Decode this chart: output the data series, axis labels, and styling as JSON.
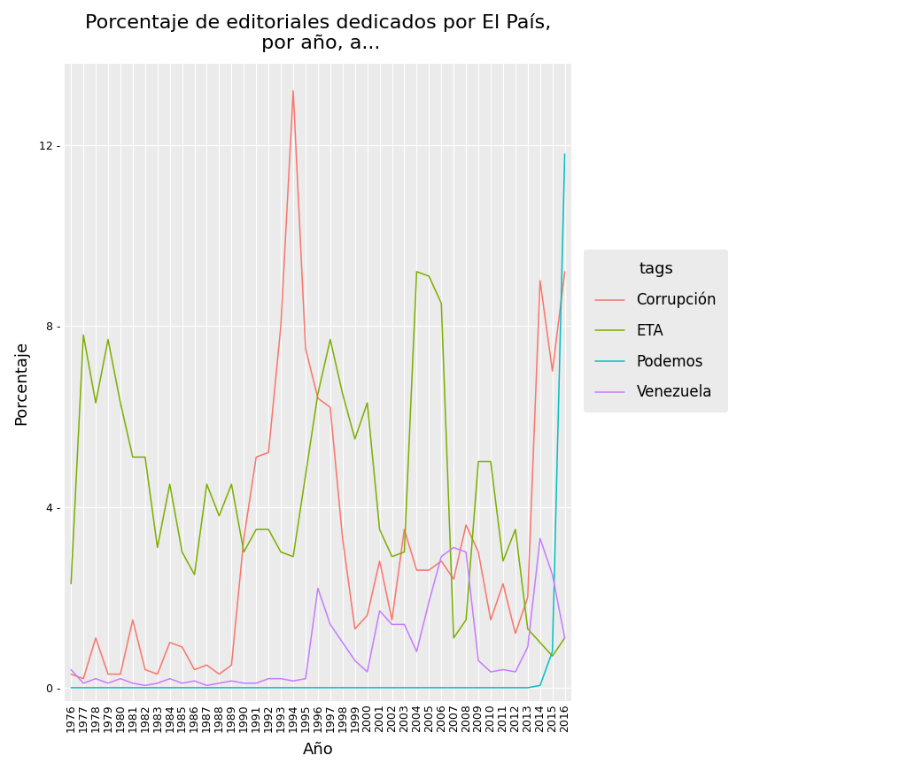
{
  "title": "Porcentaje de editoriales dedicados por El País,\n por año, a...",
  "xlabel": "Año",
  "ylabel": "Porcentaje",
  "legend_title": "tags",
  "background_color": "#EBEBEB",
  "grid_color": "#FFFFFF",
  "years": [
    1976,
    1977,
    1978,
    1979,
    1980,
    1981,
    1982,
    1983,
    1984,
    1985,
    1986,
    1987,
    1988,
    1989,
    1990,
    1991,
    1992,
    1993,
    1994,
    1995,
    1996,
    1997,
    1998,
    1999,
    2000,
    2001,
    2002,
    2003,
    2004,
    2005,
    2006,
    2007,
    2008,
    2009,
    2010,
    2011,
    2012,
    2013,
    2014,
    2015,
    2016
  ],
  "series": {
    "Corrupción": {
      "color": "#F8766D",
      "values": [
        0.3,
        0.2,
        1.1,
        0.3,
        0.3,
        1.5,
        0.4,
        0.3,
        1.0,
        0.9,
        0.4,
        0.5,
        0.3,
        0.5,
        3.3,
        5.1,
        5.2,
        8.0,
        13.2,
        7.5,
        6.4,
        6.2,
        3.3,
        1.3,
        1.6,
        2.8,
        1.5,
        3.5,
        2.6,
        2.6,
        2.8,
        2.4,
        3.6,
        3.0,
        1.5,
        2.3,
        1.2,
        2.0,
        9.0,
        7.0,
        9.2
      ]
    },
    "ETA": {
      "color": "#7CAE00",
      "values": [
        2.3,
        7.8,
        6.3,
        7.7,
        6.3,
        5.1,
        5.1,
        3.1,
        4.5,
        3.0,
        2.5,
        4.5,
        3.8,
        4.5,
        3.0,
        3.5,
        3.5,
        3.0,
        2.9,
        4.7,
        6.5,
        7.7,
        6.5,
        5.5,
        6.3,
        3.5,
        2.9,
        3.0,
        9.2,
        9.1,
        8.5,
        1.1,
        1.5,
        5.0,
        5.0,
        2.8,
        3.5,
        1.3,
        1.0,
        0.7,
        1.1
      ]
    },
    "Podemos": {
      "color": "#00BFC4",
      "values": [
        0.0,
        0.0,
        0.0,
        0.0,
        0.0,
        0.0,
        0.0,
        0.0,
        0.0,
        0.0,
        0.0,
        0.0,
        0.0,
        0.0,
        0.0,
        0.0,
        0.0,
        0.0,
        0.0,
        0.0,
        0.0,
        0.0,
        0.0,
        0.0,
        0.0,
        0.0,
        0.0,
        0.0,
        0.0,
        0.0,
        0.0,
        0.0,
        0.0,
        0.0,
        0.0,
        0.0,
        0.0,
        0.0,
        0.05,
        0.8,
        11.8
      ]
    },
    "Venezuela": {
      "color": "#C77CFF",
      "values": [
        0.4,
        0.1,
        0.2,
        0.1,
        0.2,
        0.1,
        0.05,
        0.1,
        0.2,
        0.1,
        0.15,
        0.05,
        0.1,
        0.15,
        0.1,
        0.1,
        0.2,
        0.2,
        0.15,
        0.2,
        2.2,
        1.4,
        1.0,
        0.6,
        0.35,
        1.7,
        1.4,
        1.4,
        0.8,
        1.9,
        2.9,
        3.1,
        3.0,
        0.6,
        0.35,
        0.4,
        0.35,
        0.9,
        3.3,
        2.5,
        1.1
      ]
    }
  },
  "ylim": [
    -0.3,
    13.8
  ],
  "yticks": [
    0,
    4,
    8,
    12
  ],
  "title_fontsize": 16,
  "axis_fontsize": 13,
  "tick_fontsize": 9,
  "legend_fontsize": 12
}
